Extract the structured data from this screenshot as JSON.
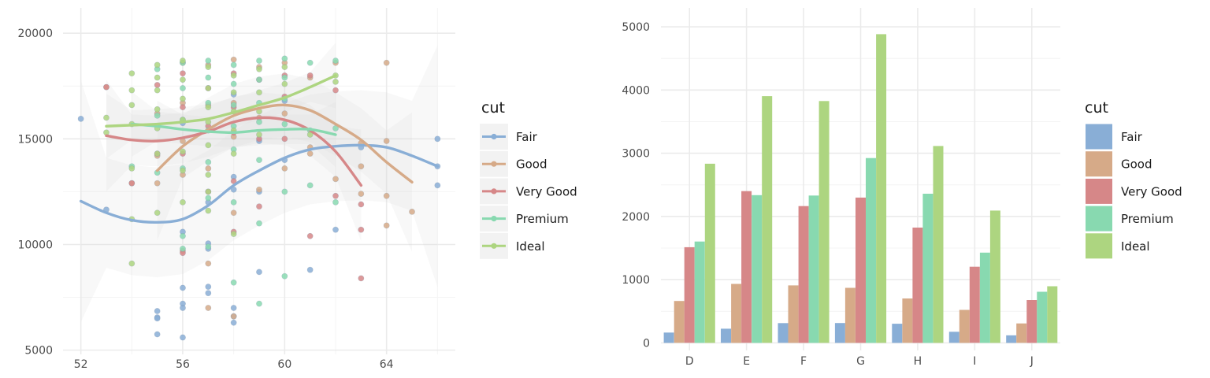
{
  "colors": {
    "Fair": "#89aed6",
    "Good": "#d6aa88",
    "Very Good": "#d68788",
    "Premium": "#88d9b0",
    "Ideal": "#add580"
  },
  "chart_data": [
    {
      "type": "scatter",
      "xlabel": "",
      "ylabel": "",
      "xlim": [
        51.3,
        66.7
      ],
      "ylim": [
        4800,
        21200
      ],
      "x_ticks": [
        52,
        56,
        60,
        64
      ],
      "y_ticks": [
        5000,
        10000,
        15000,
        20000
      ],
      "grid": true,
      "legend": {
        "title": "cut",
        "position": "right",
        "entries": [
          "Fair",
          "Good",
          "Very Good",
          "Premium",
          "Ideal"
        ]
      },
      "smooth": [
        {
          "name": "Fair",
          "x": [
            52,
            53,
            54,
            55,
            56,
            57,
            58,
            59,
            60,
            61,
            62,
            63,
            64,
            65,
            66
          ],
          "y": [
            12050,
            11500,
            11150,
            11050,
            11200,
            11850,
            12800,
            13500,
            14100,
            14500,
            14650,
            14700,
            14600,
            14200,
            13700
          ]
        },
        {
          "name": "Good",
          "x": [
            55,
            56,
            57,
            58,
            59,
            60,
            61,
            62,
            63,
            64,
            65
          ],
          "y": [
            13500,
            14650,
            15450,
            16100,
            16450,
            16600,
            16350,
            15700,
            14950,
            13900,
            12950
          ]
        },
        {
          "name": "Very Good",
          "x": [
            53,
            54,
            55,
            56,
            57,
            58,
            59,
            60,
            61,
            62,
            63
          ],
          "y": [
            15150,
            14950,
            14900,
            15050,
            15350,
            15800,
            16000,
            15900,
            15400,
            14400,
            12800
          ]
        },
        {
          "name": "Premium",
          "x": [
            54,
            55,
            56,
            57,
            58,
            59,
            60,
            61,
            62
          ],
          "y": [
            15700,
            15600,
            15450,
            15350,
            15300,
            15400,
            15450,
            15450,
            15200
          ]
        },
        {
          "name": "Ideal",
          "x": [
            53,
            54,
            55,
            56,
            57,
            58,
            59,
            60,
            61,
            62
          ],
          "y": [
            15600,
            15650,
            15700,
            15800,
            15950,
            16250,
            16600,
            16950,
            17450,
            18000
          ]
        }
      ],
      "points": [
        {
          "name": "Fair",
          "x": [
            52,
            53,
            55,
            55,
            55,
            55,
            56,
            56,
            56,
            56,
            56,
            56,
            57,
            57,
            57,
            57,
            57,
            58,
            58,
            58,
            58,
            58,
            58,
            59,
            59,
            59,
            60,
            60,
            61,
            62,
            63,
            66,
            66,
            66
          ],
          "y": [
            15950,
            11650,
            6850,
            6550,
            5750,
            6500,
            5600,
            7200,
            7000,
            7950,
            10600,
            15750,
            10050,
            9800,
            8000,
            7700,
            12000,
            12600,
            13200,
            7000,
            6600,
            6300,
            17100,
            12500,
            8700,
            14900,
            16800,
            14000,
            8800,
            10700,
            14600,
            15000,
            13700,
            12800
          ]
        },
        {
          "name": "Good",
          "x": [
            53,
            54,
            55,
            55,
            55,
            56,
            56,
            56,
            56,
            56,
            57,
            57,
            57,
            57,
            57,
            58,
            58,
            58,
            58,
            58,
            59,
            59,
            59,
            60,
            60,
            60,
            61,
            61,
            61,
            62,
            62,
            63,
            63,
            63,
            64,
            64,
            64,
            64,
            65
          ],
          "y": [
            17450,
            12900,
            12900,
            14200,
            16200,
            18600,
            16700,
            14900,
            13300,
            9700,
            18500,
            16600,
            13600,
            9100,
            7000,
            18750,
            16700,
            15100,
            11500,
            6600,
            18400,
            16000,
            12600,
            18600,
            16200,
            13600,
            17900,
            14600,
            14300,
            18600,
            13100,
            14800,
            13700,
            12400,
            18600,
            14900,
            12300,
            10900,
            11550
          ]
        },
        {
          "name": "Very Good",
          "x": [
            53,
            54,
            55,
            55,
            56,
            56,
            56,
            56,
            57,
            57,
            57,
            58,
            58,
            58,
            58,
            58,
            59,
            59,
            59,
            60,
            60,
            60,
            61,
            61,
            62,
            62,
            63,
            63,
            63
          ],
          "y": [
            17450,
            12900,
            17550,
            14300,
            18100,
            16500,
            14300,
            9600,
            17400,
            15600,
            12500,
            18100,
            16500,
            15300,
            13000,
            10600,
            17800,
            15000,
            11800,
            18000,
            17000,
            15000,
            18000,
            10400,
            17300,
            12300,
            11900,
            10700,
            8400
          ]
        },
        {
          "name": "Premium",
          "x": [
            54,
            55,
            55,
            55,
            56,
            56,
            56,
            56,
            56,
            56,
            57,
            57,
            57,
            57,
            57,
            57,
            57,
            58,
            58,
            58,
            58,
            58,
            58,
            58,
            59,
            59,
            59,
            59,
            59,
            59,
            59,
            60,
            60,
            60,
            60,
            60,
            60,
            61,
            61,
            61,
            62,
            62,
            62
          ],
          "y": [
            13700,
            18300,
            16100,
            13400,
            18600,
            17400,
            15900,
            13600,
            10400,
            9800,
            18700,
            17900,
            16700,
            15400,
            13900,
            12200,
            9900,
            18500,
            17600,
            16600,
            15600,
            14500,
            12000,
            8200,
            18700,
            17800,
            16700,
            15800,
            14000,
            11000,
            7200,
            18800,
            17900,
            16900,
            15700,
            12500,
            8500,
            18600,
            15400,
            12800,
            18700,
            15500,
            12000
          ]
        },
        {
          "name": "Ideal",
          "x": [
            53,
            53,
            54,
            54,
            54,
            54,
            54,
            54,
            54,
            55,
            55,
            55,
            55,
            55,
            55,
            55,
            56,
            56,
            56,
            56,
            56,
            56,
            56,
            57,
            57,
            57,
            57,
            57,
            57,
            57,
            57,
            58,
            58,
            58,
            58,
            58,
            58,
            59,
            59,
            59,
            59,
            60,
            60,
            61,
            62,
            62
          ],
          "y": [
            16000,
            15300,
            18100,
            17300,
            16600,
            15700,
            13600,
            11200,
            9100,
            18500,
            17900,
            17300,
            16400,
            15500,
            14300,
            11500,
            18700,
            17800,
            16900,
            15900,
            14400,
            13500,
            12000,
            18400,
            17400,
            16500,
            15800,
            14700,
            13300,
            12500,
            11600,
            18000,
            17200,
            16300,
            15400,
            14300,
            10500,
            18300,
            17200,
            16300,
            15200,
            18400,
            17600,
            15200,
            18000,
            17700
          ]
        }
      ]
    },
    {
      "type": "bar",
      "xlabel": "",
      "ylabel": "",
      "categories": [
        "D",
        "E",
        "F",
        "G",
        "H",
        "I",
        "J"
      ],
      "ylim": [
        -120,
        5300
      ],
      "y_ticks": [
        0,
        1000,
        2000,
        3000,
        4000,
        5000
      ],
      "grid": true,
      "legend": {
        "title": "cut",
        "position": "right",
        "entries": [
          "Fair",
          "Good",
          "Very Good",
          "Premium",
          "Ideal"
        ]
      },
      "series": [
        {
          "name": "Fair",
          "values": [
            163,
            224,
            312,
            314,
            303,
            175,
            119
          ]
        },
        {
          "name": "Good",
          "values": [
            662,
            933,
            909,
            871,
            702,
            522,
            307
          ]
        },
        {
          "name": "Very Good",
          "values": [
            1513,
            2400,
            2164,
            2299,
            1824,
            1204,
            678
          ]
        },
        {
          "name": "Premium",
          "values": [
            1603,
            2337,
            2331,
            2924,
            2360,
            1428,
            808
          ]
        },
        {
          "name": "Ideal",
          "values": [
            2834,
            3903,
            3826,
            4884,
            3115,
            2093,
            896
          ]
        }
      ]
    }
  ]
}
